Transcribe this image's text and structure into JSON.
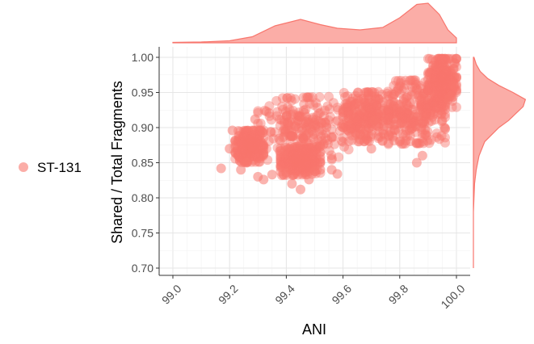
{
  "chart_data": {
    "type": "scatter",
    "xlabel": "ANI",
    "ylabel": "Shared / Total Fragments",
    "xlim": [
      99.0,
      100.0
    ],
    "ylim": [
      0.7,
      1.0
    ],
    "xticks": [
      "99.0",
      "99.2",
      "99.4",
      "99.6",
      "99.8",
      "100.0"
    ],
    "yticks": [
      "0.70",
      "0.75",
      "0.80",
      "0.85",
      "0.90",
      "0.95",
      "1.00"
    ],
    "grid": true,
    "legend": {
      "position": "left",
      "entries": [
        {
          "label": "ST-131",
          "color": "#F8766D"
        }
      ]
    },
    "marginals": {
      "top": "density of ANI",
      "right": "density of Shared / Total Fragments"
    },
    "series": [
      {
        "label": "ST-131",
        "color": "#F8766D",
        "clusters": [
          {
            "x": [
              99.22,
              99.32
            ],
            "y": [
              0.85,
              0.895
            ]
          },
          {
            "x": [
              99.3,
              99.62
            ],
            "y": [
              0.845,
              0.94
            ]
          },
          {
            "x": [
              99.38,
              99.52
            ],
            "y": [
              0.83,
              0.87
            ]
          },
          {
            "x": [
              99.6,
              99.78
            ],
            "y": [
              0.875,
              0.945
            ]
          },
          {
            "x": [
              99.76,
              99.96
            ],
            "y": [
              0.87,
              0.96
            ]
          },
          {
            "x": [
              99.9,
              100.0
            ],
            "y": [
              0.92,
              0.995
            ]
          }
        ],
        "outliers": [
          [
            99.17,
            0.842
          ],
          [
            99.2,
            0.87
          ],
          [
            99.21,
            0.896
          ],
          [
            99.24,
            0.84
          ],
          [
            99.26,
            0.85
          ],
          [
            99.3,
            0.83
          ],
          [
            99.32,
            0.826
          ],
          [
            99.35,
            0.833
          ],
          [
            99.4,
            0.836
          ],
          [
            99.42,
            0.82
          ],
          [
            99.45,
            0.812
          ],
          [
            99.48,
            0.826
          ],
          [
            99.5,
            0.838
          ],
          [
            99.52,
            0.84
          ],
          [
            99.56,
            0.84
          ],
          [
            99.58,
            0.834
          ],
          [
            99.33,
            0.923
          ],
          [
            99.29,
            0.912
          ],
          [
            99.71,
            0.91
          ],
          [
            99.7,
            0.87
          ],
          [
            99.88,
            0.86
          ],
          [
            99.86,
            0.85
          ],
          [
            99.99,
            0.96
          ],
          [
            99.98,
            0.945
          ],
          [
            100.0,
            0.998
          ],
          [
            99.95,
            0.91
          ],
          [
            99.97,
            0.94
          ],
          [
            99.66,
            0.883
          ],
          [
            99.8,
            0.88
          ]
        ],
        "point_count": 1500
      }
    ],
    "x_density": [
      [
        99.0,
        0.01
      ],
      [
        99.1,
        0.02
      ],
      [
        99.2,
        0.05
      ],
      [
        99.28,
        0.15
      ],
      [
        99.36,
        0.42
      ],
      [
        99.45,
        0.58
      ],
      [
        99.52,
        0.45
      ],
      [
        99.58,
        0.36
      ],
      [
        99.66,
        0.32
      ],
      [
        99.74,
        0.38
      ],
      [
        99.8,
        0.62
      ],
      [
        99.86,
        0.95
      ],
      [
        99.9,
        0.98
      ],
      [
        99.94,
        0.7
      ],
      [
        99.97,
        0.32
      ],
      [
        100.0,
        0.12
      ]
    ],
    "y_density": [
      [
        0.7,
        0.0
      ],
      [
        0.78,
        0.0
      ],
      [
        0.82,
        0.02
      ],
      [
        0.84,
        0.05
      ],
      [
        0.86,
        0.1
      ],
      [
        0.88,
        0.2
      ],
      [
        0.9,
        0.45
      ],
      [
        0.91,
        0.62
      ],
      [
        0.92,
        0.75
      ],
      [
        0.93,
        0.88
      ],
      [
        0.94,
        0.92
      ],
      [
        0.95,
        0.7
      ],
      [
        0.96,
        0.45
      ],
      [
        0.97,
        0.25
      ],
      [
        0.98,
        0.12
      ],
      [
        0.99,
        0.05
      ],
      [
        1.0,
        0.01
      ]
    ]
  }
}
